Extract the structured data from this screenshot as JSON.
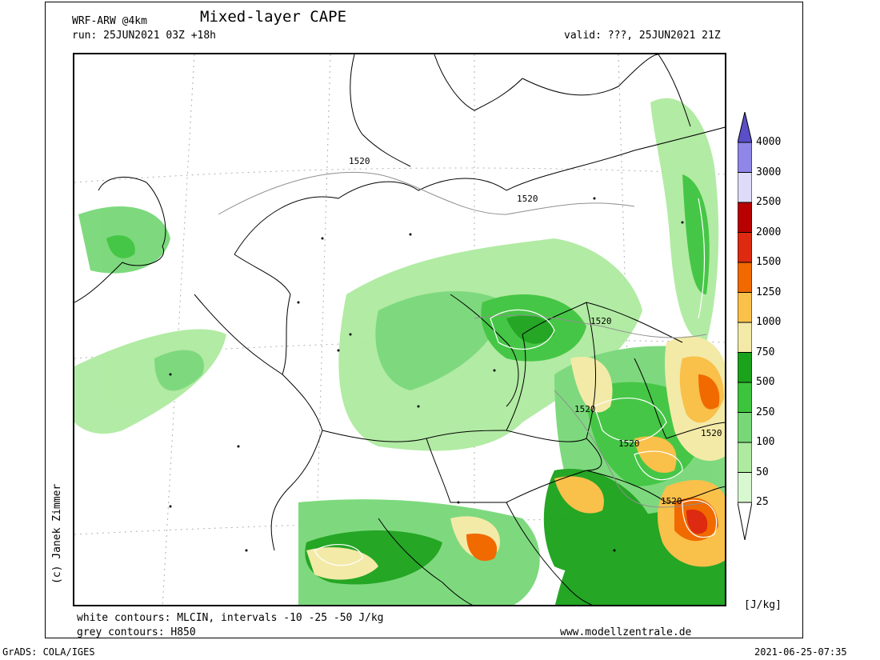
{
  "header": {
    "model": "WRF-ARW @4km",
    "title": "Mixed-layer CAPE",
    "run": "run: 25JUN2021 03Z +18h",
    "valid": "valid: ???, 25JUN2021 21Z"
  },
  "footer": {
    "white_contours": "white contours: MLCIN, intervals -10 -25 -50 J/kg",
    "grey_contours": "grey contours: H850",
    "website": "www.modellzentrale.de",
    "grads": "GrADS: COLA/IGES",
    "timestamp": "2021-06-25-07:35"
  },
  "copyright": "(c) Janek Zimmer",
  "colorbar": {
    "unit": "[J/kg]",
    "levels": [
      "4000",
      "3000",
      "2500",
      "2000",
      "1500",
      "1250",
      "1000",
      "750",
      "500",
      "250",
      "100",
      "50",
      "25"
    ],
    "colors": [
      "#5a4fc8",
      "#8f86e8",
      "#dcdcf8",
      "#b80000",
      "#dd2a10",
      "#f06a00",
      "#f9c04a",
      "#f3eaa8",
      "#1aa21a",
      "#3dc43d",
      "#78d878",
      "#aeeaa0",
      "#d8f8d0",
      "#ffffff"
    ]
  },
  "contour_labels": [
    "1520",
    "1520",
    "1520",
    "1520",
    "1520",
    "1520",
    "1520"
  ]
}
